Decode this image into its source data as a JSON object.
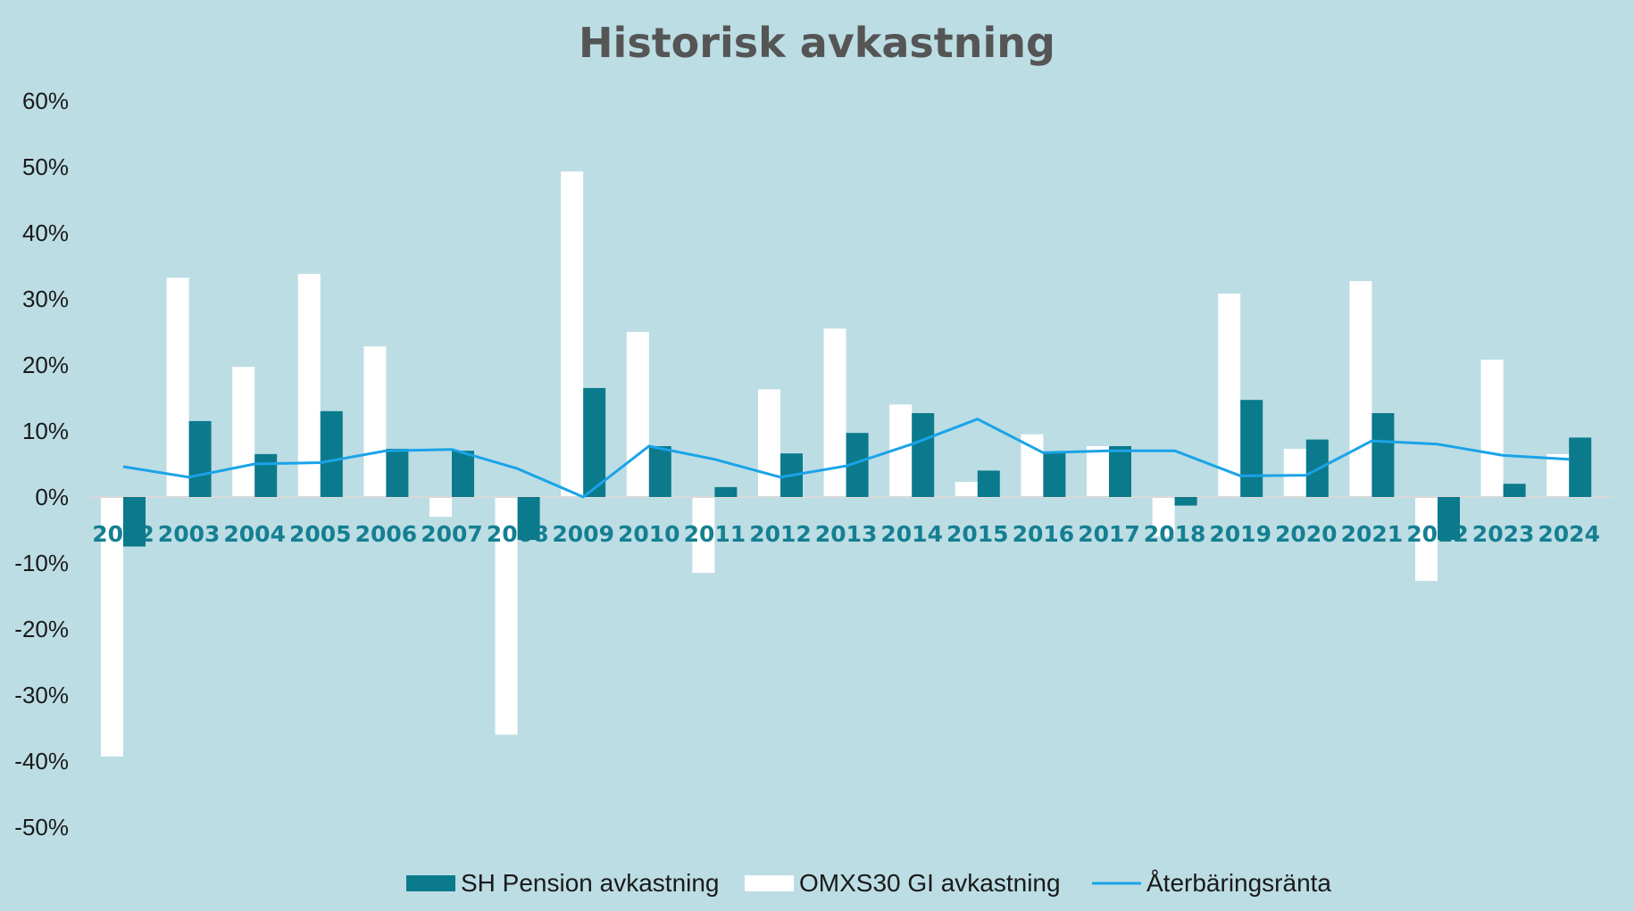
{
  "colors": {
    "background": "#bcdde4",
    "sh_bar": "#0b7a8c",
    "omx_bar": "#ffffff",
    "line": "#1aa3e8",
    "axis_label": "#157f92",
    "title": "#555555"
  },
  "chart_data": {
    "type": "bar",
    "title": "Historisk avkastning",
    "xlabel": "",
    "ylabel": "",
    "ylim": [
      -0.5,
      0.6
    ],
    "y_ticks": [
      0.6,
      0.5,
      0.4,
      0.3,
      0.2,
      0.1,
      0,
      -0.1,
      -0.2,
      -0.3,
      -0.4,
      -0.5
    ],
    "y_tick_labels": [
      "60%",
      "50%",
      "40%",
      "30%",
      "20%",
      "10%",
      "0%",
      "-10%",
      "-20%",
      "-30%",
      "-40%",
      "-50%"
    ],
    "grid": false,
    "legend_position": "bottom",
    "categories": [
      "2002",
      "2003",
      "2004",
      "2005",
      "2006",
      "2007",
      "2008",
      "2009",
      "2010",
      "2011",
      "2012",
      "2013",
      "2014",
      "2015",
      "2016",
      "2017",
      "2018",
      "2019",
      "2020",
      "2021",
      "2022",
      "2023",
      "2024"
    ],
    "series": [
      {
        "name": "SH Pension avkastning",
        "kind": "bar",
        "values": [
          -0.075,
          0.115,
          0.065,
          0.13,
          0.073,
          0.07,
          -0.065,
          0.165,
          0.077,
          0.015,
          0.066,
          0.097,
          0.127,
          0.04,
          0.068,
          0.077,
          -0.013,
          0.147,
          0.087,
          0.127,
          -0.065,
          0.02,
          0.09
        ]
      },
      {
        "name": "OMXS30 GI avkastning",
        "kind": "bar",
        "values": [
          -0.393,
          0.332,
          0.197,
          0.338,
          0.228,
          -0.03,
          -0.36,
          0.493,
          0.25,
          -0.115,
          0.163,
          0.255,
          0.14,
          0.023,
          0.095,
          0.077,
          -0.06,
          0.308,
          0.073,
          0.327,
          -0.127,
          0.208,
          0.065
        ]
      },
      {
        "name": "Återbäringsränta",
        "kind": "line",
        "values": [
          0.046,
          0.03,
          0.05,
          0.052,
          0.07,
          0.072,
          0.043,
          0.0,
          0.077,
          0.057,
          0.03,
          0.047,
          0.08,
          0.118,
          0.067,
          0.07,
          0.07,
          0.032,
          0.033,
          0.085,
          0.08,
          0.063,
          0.057
        ]
      }
    ]
  }
}
